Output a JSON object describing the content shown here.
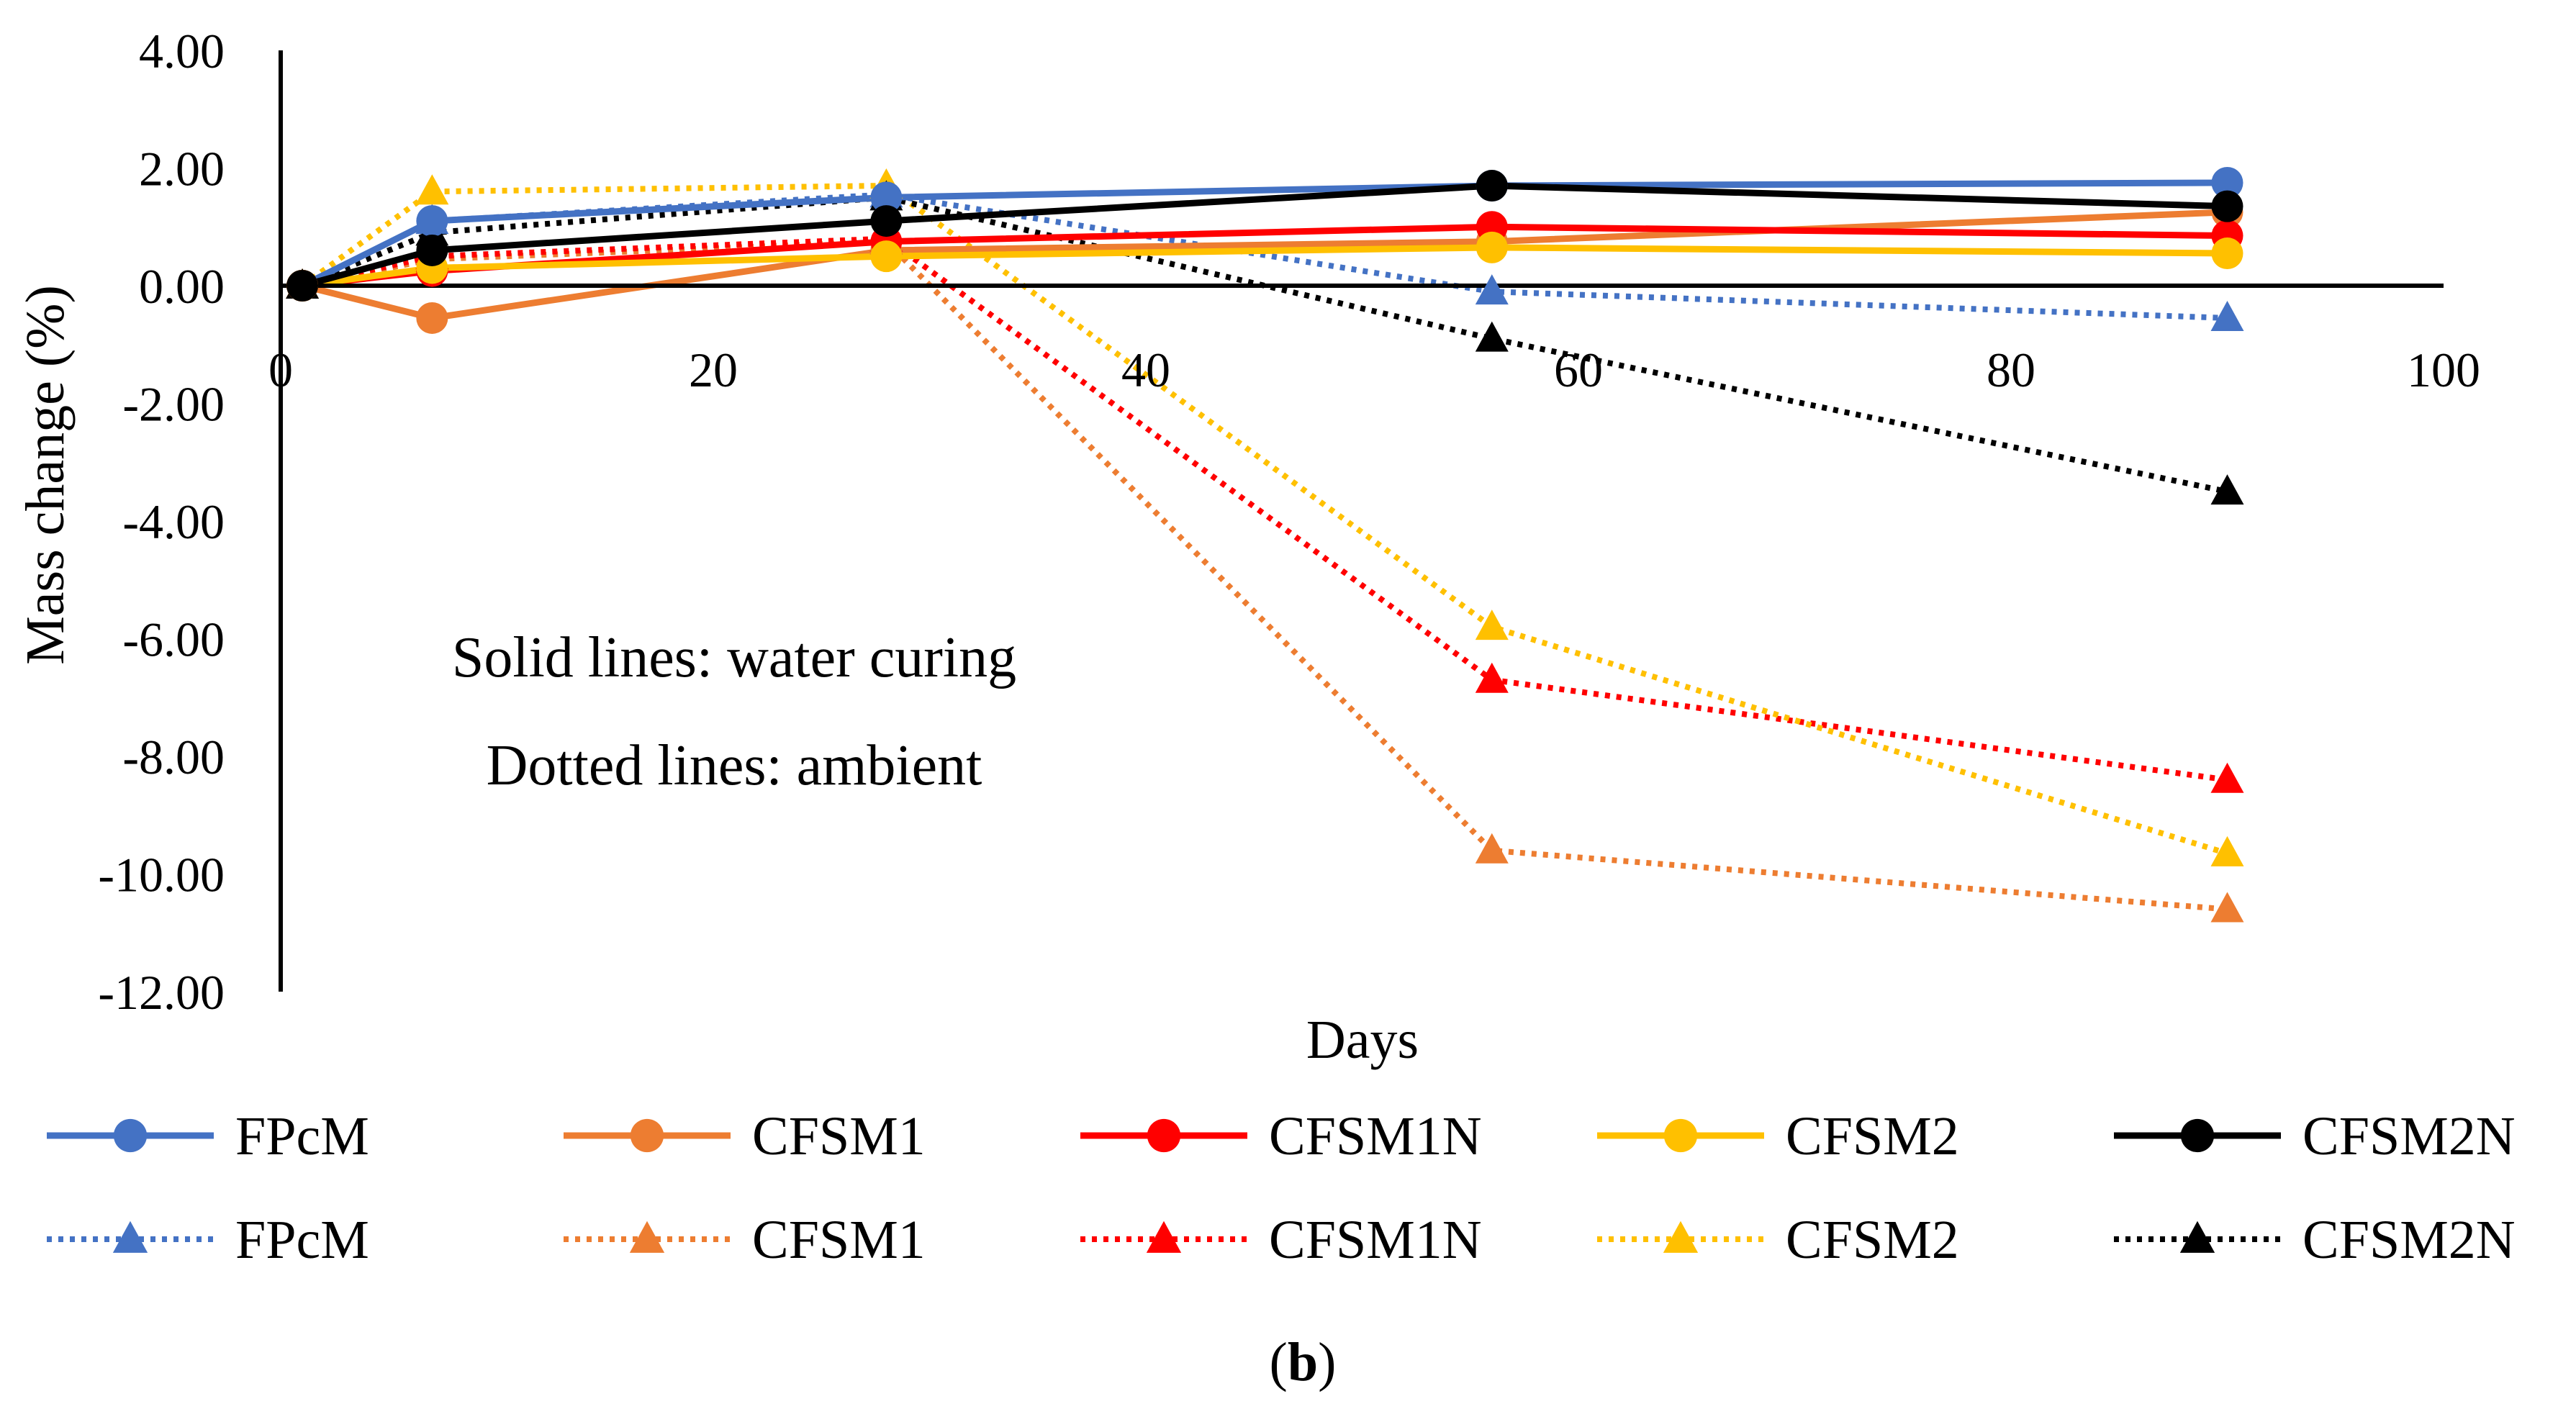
{
  "chart_data": {
    "type": "line",
    "xlabel": "Days",
    "ylabel": "Mass change (%)",
    "xlim": [
      0,
      100
    ],
    "ylim": [
      -12,
      4
    ],
    "x_ticks": [
      "0",
      "20",
      "40",
      "60",
      "80",
      "100"
    ],
    "y_ticks": [
      "4.00",
      "2.00",
      "0.00",
      "-2.00",
      "-4.00",
      "-6.00",
      "-8.00",
      "-10.00",
      "-12.00"
    ],
    "x_tick_values": [
      0,
      20,
      40,
      60,
      80,
      100
    ],
    "y_tick_values": [
      4,
      2,
      0,
      -2,
      -4,
      -6,
      -8,
      -10,
      -12
    ],
    "grid": false,
    "legend_position": "bottom",
    "annotations": [
      "Solid lines: water curing",
      "Dotted lines: ambient"
    ],
    "panel_label": {
      "open": "(",
      "letter": "b",
      "close": ")"
    },
    "series": [
      {
        "name": "FPcM",
        "style": "solid",
        "marker": "circle",
        "color": "#4472C4",
        "x": [
          1,
          7,
          28,
          56,
          90
        ],
        "y": [
          0,
          1.1,
          1.5,
          1.7,
          1.75
        ]
      },
      {
        "name": "CFSM1",
        "style": "solid",
        "marker": "circle",
        "color": "#ED7D31",
        "x": [
          1,
          7,
          28,
          56,
          90
        ],
        "y": [
          0,
          -0.55,
          0.6,
          0.75,
          1.25
        ]
      },
      {
        "name": "CFSM1N",
        "style": "solid",
        "marker": "circle",
        "color": "#FF0000",
        "x": [
          1,
          7,
          28,
          56,
          90
        ],
        "y": [
          0,
          0.25,
          0.75,
          1.0,
          0.85
        ]
      },
      {
        "name": "CFSM2",
        "style": "solid",
        "marker": "circle",
        "color": "#FFC000",
        "x": [
          1,
          7,
          28,
          56,
          90
        ],
        "y": [
          0,
          0.3,
          0.5,
          0.65,
          0.55
        ]
      },
      {
        "name": "CFSM2N",
        "style": "solid",
        "marker": "circle",
        "color": "#000000",
        "x": [
          1,
          7,
          28,
          56,
          90
        ],
        "y": [
          0,
          0.6,
          1.1,
          1.7,
          1.35
        ]
      },
      {
        "name": "FPcM",
        "style": "dotted",
        "marker": "triangle",
        "color": "#4472C4",
        "x": [
          1,
          7,
          28,
          56,
          90
        ],
        "y": [
          0,
          1.1,
          1.55,
          -0.1,
          -0.55
        ]
      },
      {
        "name": "CFSM1",
        "style": "dotted",
        "marker": "triangle",
        "color": "#ED7D31",
        "x": [
          1,
          7,
          28,
          56,
          90
        ],
        "y": [
          0,
          0.45,
          0.75,
          -9.6,
          -10.6
        ]
      },
      {
        "name": "CFSM1N",
        "style": "dotted",
        "marker": "triangle",
        "color": "#FF0000",
        "x": [
          1,
          7,
          28,
          56,
          90
        ],
        "y": [
          0,
          0.5,
          0.8,
          -6.7,
          -8.4
        ]
      },
      {
        "name": "CFSM2",
        "style": "dotted",
        "marker": "triangle",
        "color": "#FFC000",
        "x": [
          1,
          7,
          28,
          56,
          90
        ],
        "y": [
          0,
          1.6,
          1.7,
          -5.8,
          -9.65
        ]
      },
      {
        "name": "CFSM2N",
        "style": "dotted",
        "marker": "triangle",
        "color": "#000000",
        "x": [
          1,
          7,
          28,
          56,
          90
        ],
        "y": [
          0,
          0.9,
          1.5,
          -0.9,
          -3.5
        ]
      }
    ]
  }
}
